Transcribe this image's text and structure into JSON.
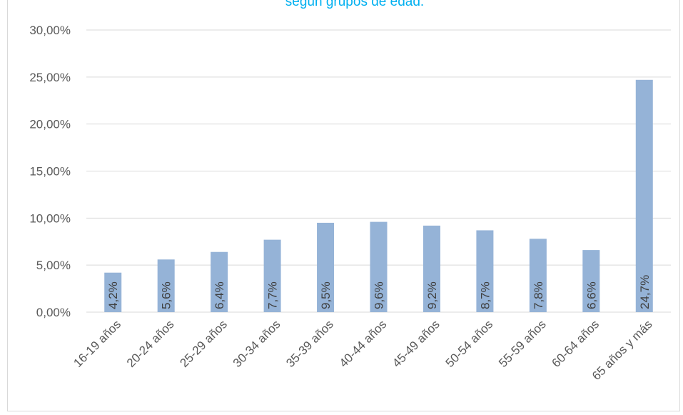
{
  "chart_data": {
    "type": "bar",
    "title": "según grupos de edad.",
    "categories": [
      "16-19 años",
      "20-24 años",
      "25-29 años",
      "30-34 años",
      "35-39 años",
      "40-44 años",
      "45-49 años",
      "50-54 años",
      "55-59 años",
      "60-64 años",
      "65 años y más"
    ],
    "series": [
      {
        "values": [
          4.2,
          5.6,
          6.4,
          7.7,
          9.5,
          9.6,
          9.2,
          8.7,
          7.8,
          6.6,
          24.7
        ]
      }
    ],
    "data_labels": [
      "4,2%",
      "5,6%",
      "6,4%",
      "7,7%",
      "9,5%",
      "9,6%",
      "9,2%",
      "8,7%",
      "7,8%",
      "6,6%",
      "24,7%"
    ],
    "y_ticks": [
      0,
      5,
      10,
      15,
      20,
      25,
      30
    ],
    "y_tick_labels": [
      "0,00%",
      "5,00%",
      "10,00%",
      "15,00%",
      "20,00%",
      "25,00%",
      "30,00%"
    ],
    "ylim": [
      0,
      30
    ],
    "xlabel": "",
    "ylabel": "",
    "grid": true,
    "legend": "none",
    "colors": {
      "bar": "#95b3d7",
      "grid": "#d9d9d9",
      "title": "#00b0f0",
      "text": "#595959"
    }
  }
}
